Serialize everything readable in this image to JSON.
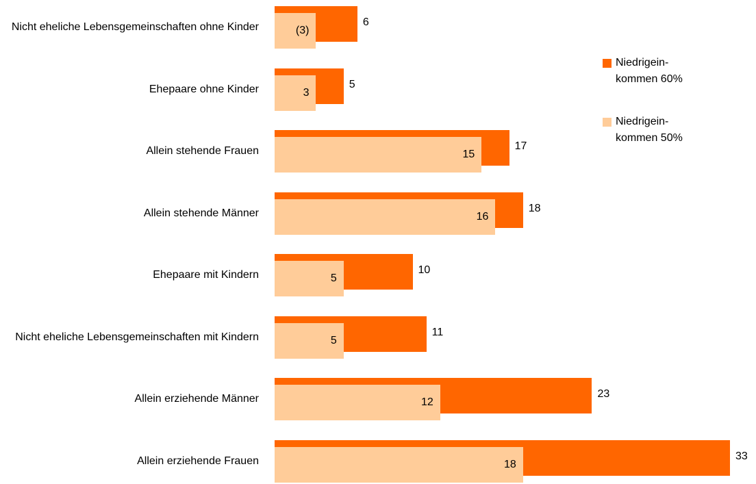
{
  "chart_data": {
    "type": "bar",
    "orientation": "horizontal",
    "categories": [
      "Nicht eheliche Lebensgemeinschaften ohne Kinder",
      "Ehepaare ohne Kinder",
      "Allein stehende Frauen",
      "Allein stehende Männer",
      "Ehepaare mit Kindern",
      "Nicht eheliche Lebensgemeinschaften mit Kindern",
      "Allein erziehende Männer",
      "Allein erziehende Frauen"
    ],
    "series": [
      {
        "name": "Niedrigein-\nkommen 60%",
        "color": "#ff6600",
        "values": [
          6,
          5,
          17,
          18,
          10,
          11,
          23,
          33
        ]
      },
      {
        "name": "Niedrigein-\nkommen 50%",
        "color": "#ffcc99",
        "values": [
          3,
          3,
          15,
          16,
          5,
          5,
          12,
          18
        ],
        "value_labels": [
          "(3)",
          "3",
          "15",
          "16",
          "5",
          "5",
          "12",
          "18"
        ]
      }
    ],
    "legend": "right"
  }
}
